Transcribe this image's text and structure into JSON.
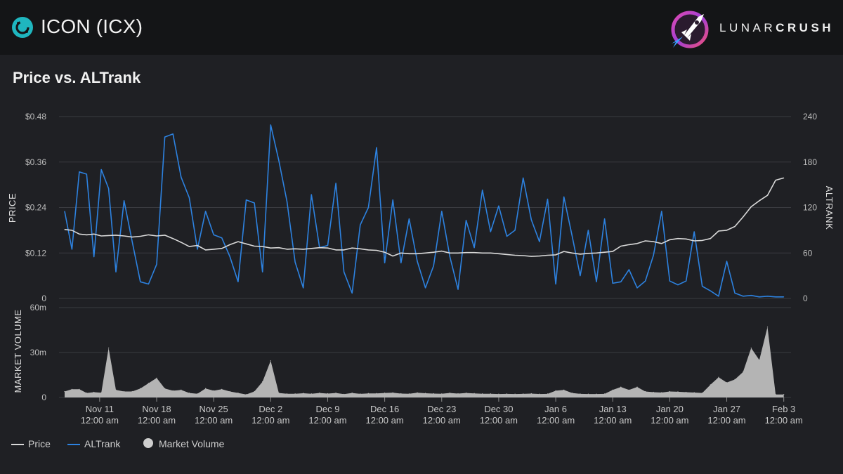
{
  "header": {
    "coin_title": "ICON (ICX)",
    "brand_lunar": "LUNAR",
    "brand_crush": "CRUSH"
  },
  "section_title": "Price vs. ALTrank",
  "colors": {
    "price": "#d9d9d9",
    "altrank": "#2d82e0",
    "volume": "#bdbdbd",
    "grid": "#3a3b40"
  },
  "chart_data": {
    "type": "line",
    "x_tick_labels": [
      {
        "date": "Nov 11",
        "time": "12:00 am"
      },
      {
        "date": "Nov 18",
        "time": "12:00 am"
      },
      {
        "date": "Nov 25",
        "time": "12:00 am"
      },
      {
        "date": "Dec 2",
        "time": "12:00 am"
      },
      {
        "date": "Dec 9",
        "time": "12:00 am"
      },
      {
        "date": "Dec 16",
        "time": "12:00 am"
      },
      {
        "date": "Dec 23",
        "time": "12:00 am"
      },
      {
        "date": "Dec 30",
        "time": "12:00 am"
      },
      {
        "date": "Jan 6",
        "time": "12:00 am"
      },
      {
        "date": "Jan 13",
        "time": "12:00 am"
      },
      {
        "date": "Jan 20",
        "time": "12:00 am"
      },
      {
        "date": "Jan 27",
        "time": "12:00 am"
      },
      {
        "date": "Feb 3",
        "time": "12:00 am"
      }
    ],
    "x_range_days": [
      -4.3,
      84.2
    ],
    "tick_day_offsets": [
      0,
      7,
      14,
      21,
      28,
      35,
      42,
      49,
      56,
      63,
      70,
      77,
      84
    ],
    "price_axis": {
      "label": "PRICE",
      "ylim": [
        0,
        0.48
      ],
      "ticks": [
        0,
        0.12,
        0.24,
        0.36,
        0.48
      ],
      "tick_labels": [
        "0",
        "$0.12",
        "$0.24",
        "$0.36",
        "$0.48"
      ]
    },
    "altrank_axis": {
      "label": "ALTRANK",
      "ylim": [
        0,
        240
      ],
      "ticks": [
        0,
        60,
        120,
        180,
        240
      ],
      "tick_labels": [
        "0",
        "60",
        "120",
        "180",
        "240"
      ]
    },
    "volume_axis": {
      "label": "MARKET VOLUME",
      "ylim": [
        0,
        60
      ],
      "ticks": [
        0,
        30,
        60
      ],
      "tick_labels": [
        "0",
        "30m",
        "60m"
      ]
    },
    "series": [
      {
        "name": "Price",
        "axis": "price",
        "x": [
          -4.3,
          -3.4,
          -2.5,
          -1.6,
          -0.7,
          0.2,
          1.1,
          2,
          3,
          4,
          5,
          6,
          7,
          8,
          9,
          10,
          11,
          12,
          13,
          14,
          15,
          16,
          17,
          18,
          19,
          20,
          21,
          22,
          23,
          24,
          25,
          26,
          27,
          28,
          29,
          30,
          31,
          32,
          33,
          34,
          35,
          36,
          37,
          38,
          39,
          40,
          41,
          42,
          43,
          44,
          45,
          46,
          47,
          48,
          49,
          50,
          51,
          52,
          53,
          54,
          55,
          56,
          57,
          58,
          59,
          60,
          61,
          62,
          63,
          64,
          65,
          66,
          67,
          68,
          69,
          70,
          71,
          72,
          73,
          74,
          75,
          76,
          77,
          78,
          79,
          80,
          81,
          82,
          83,
          84
        ],
        "values": [
          0.182,
          0.18,
          0.17,
          0.168,
          0.17,
          0.165,
          0.166,
          0.167,
          0.165,
          0.162,
          0.164,
          0.168,
          0.165,
          0.167,
          0.158,
          0.148,
          0.137,
          0.14,
          0.128,
          0.13,
          0.132,
          0.142,
          0.15,
          0.144,
          0.138,
          0.137,
          0.133,
          0.134,
          0.13,
          0.131,
          0.13,
          0.132,
          0.134,
          0.133,
          0.128,
          0.128,
          0.133,
          0.131,
          0.128,
          0.127,
          0.122,
          0.112,
          0.12,
          0.118,
          0.118,
          0.12,
          0.122,
          0.125,
          0.12,
          0.12,
          0.121,
          0.121,
          0.12,
          0.12,
          0.118,
          0.116,
          0.114,
          0.113,
          0.111,
          0.112,
          0.114,
          0.115,
          0.124,
          0.12,
          0.117,
          0.119,
          0.12,
          0.122,
          0.124,
          0.138,
          0.142,
          0.145,
          0.152,
          0.15,
          0.145,
          0.155,
          0.158,
          0.157,
          0.152,
          0.153,
          0.158,
          0.178,
          0.18,
          0.19,
          0.215,
          0.242,
          0.258,
          0.272,
          0.312,
          0.318
        ]
      },
      {
        "name": "ALTrank",
        "axis": "altrank",
        "x": [
          -4.3,
          -3.4,
          -2.5,
          -1.6,
          -0.7,
          0.2,
          1.1,
          2,
          3,
          4,
          5,
          6,
          7,
          8,
          9,
          10,
          11,
          12,
          13,
          14,
          15,
          16,
          17,
          18,
          19,
          20,
          21,
          22,
          23,
          24,
          25,
          26,
          27,
          28,
          29,
          30,
          31,
          32,
          33,
          34,
          35,
          36,
          37,
          38,
          39,
          40,
          41,
          42,
          43,
          44,
          45,
          46,
          47,
          48,
          49,
          50,
          51,
          52,
          53,
          54,
          55,
          56,
          57,
          58,
          59,
          60,
          61,
          62,
          63,
          64,
          65,
          66,
          67,
          68,
          69,
          70,
          71,
          72,
          73,
          74,
          75,
          76,
          77,
          78,
          79,
          80,
          81,
          82,
          83,
          84
        ],
        "values": [
          115,
          65,
          167,
          164,
          55,
          170,
          145,
          35,
          129,
          75,
          22,
          19,
          45,
          213,
          217,
          160,
          133,
          65,
          115,
          84,
          80,
          55,
          22,
          130,
          126,
          35,
          229,
          182,
          128,
          48,
          14,
          137,
          67,
          70,
          152,
          35,
          7,
          97,
          120,
          199,
          47,
          130,
          47,
          105,
          49,
          14,
          43,
          115,
          55,
          12,
          103,
          67,
          143,
          88,
          122,
          82,
          90,
          159,
          104,
          75,
          131,
          19,
          134,
          83,
          30,
          90,
          22,
          105,
          20,
          22,
          38,
          14,
          23,
          57,
          115,
          23,
          18,
          23,
          88,
          16,
          10,
          3,
          49,
          7,
          3,
          4,
          2,
          3,
          2,
          2
        ]
      },
      {
        "name": "Market Volume",
        "axis": "volume",
        "x": [
          -4.3,
          -3.4,
          -2.5,
          -1.6,
          -0.7,
          0.2,
          1.1,
          2,
          3,
          4,
          5,
          6,
          7,
          8,
          9,
          10,
          11,
          12,
          13,
          14,
          15,
          16,
          17,
          18,
          19,
          20,
          21,
          22,
          23,
          24,
          25,
          26,
          27,
          28,
          29,
          30,
          31,
          32,
          33,
          34,
          35,
          36,
          37,
          38,
          39,
          40,
          41,
          42,
          43,
          44,
          45,
          46,
          47,
          48,
          49,
          50,
          51,
          52,
          53,
          54,
          55,
          56,
          57,
          58,
          59,
          60,
          61,
          62,
          63,
          64,
          65,
          66,
          67,
          68,
          69,
          70,
          71,
          72,
          73,
          74,
          75,
          76,
          77,
          78,
          79,
          80,
          81,
          82,
          83,
          84
        ],
        "values": [
          4,
          5.5,
          5.5,
          3,
          3.5,
          3.2,
          33,
          5,
          4,
          4,
          6,
          9.5,
          13,
          6,
          4.5,
          5,
          3,
          2.5,
          6,
          4.5,
          5.5,
          4,
          3,
          2,
          4,
          10.5,
          24.5,
          3,
          2.5,
          2.5,
          2.8,
          2.5,
          3,
          2.6,
          3,
          2.2,
          3,
          2.4,
          2.7,
          2.7,
          3,
          3.2,
          2.6,
          2.5,
          3.2,
          2.8,
          2.6,
          2.5,
          3,
          2.6,
          3,
          2.7,
          2.5,
          2.5,
          2.3,
          2.4,
          2.3,
          2.4,
          2.6,
          2.3,
          2.4,
          4.5,
          5,
          3,
          2.4,
          2.3,
          2.3,
          2.4,
          5,
          7,
          5,
          7,
          4,
          3.5,
          3.3,
          4,
          3.8,
          3.5,
          3.3,
          3,
          8.5,
          13.5,
          10,
          12,
          17,
          33,
          25,
          47,
          2,
          2
        ]
      }
    ]
  },
  "legend": [
    {
      "label": "Price"
    },
    {
      "label": "ALTrank"
    },
    {
      "label": "Market Volume"
    }
  ]
}
